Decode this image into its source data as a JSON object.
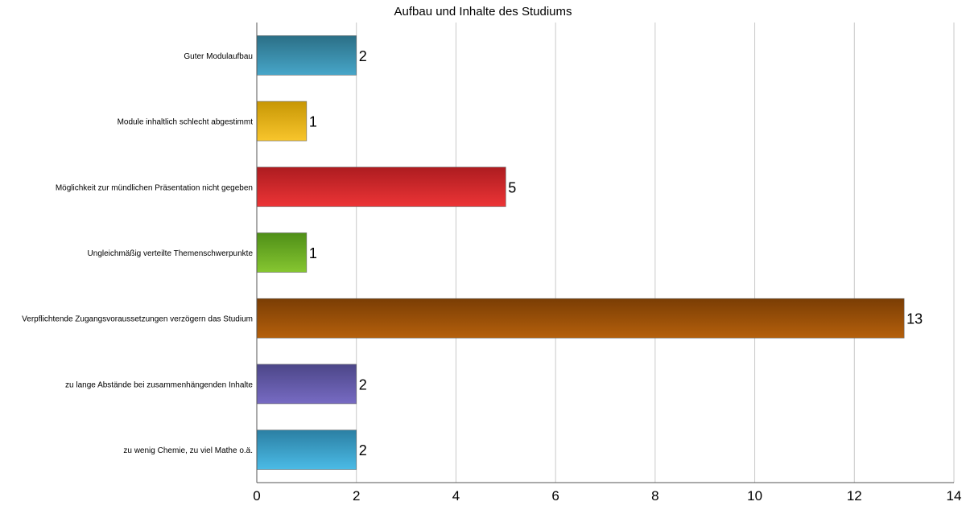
{
  "chart_data": {
    "type": "bar",
    "orientation": "horizontal",
    "title": "Aufbau und Inhalte des Studiums",
    "categories": [
      "Guter Modulaufbau",
      "Module inhaltlich schlecht abgestimmt",
      "Möglichkeit zur mündlichen Präsentation nicht gegeben",
      "Ungleichmäßig verteilte Themenschwerpunkte",
      "Verpflichtende Zugangsvoraussetzungen verzögern das Studium",
      "zu lange Abstände bei zusammenhängenden Inhalte",
      "zu wenig Chemie, zu viel Mathe o.ä."
    ],
    "values": [
      2,
      1,
      5,
      1,
      13,
      2,
      2
    ],
    "colors": [
      [
        "#2b6f86",
        "#47a6c9"
      ],
      [
        "#c79705",
        "#f8c52c"
      ],
      [
        "#ad1c20",
        "#ec3436"
      ],
      [
        "#4f8f17",
        "#86c631"
      ],
      [
        "#7a3d04",
        "#b5600c"
      ],
      [
        "#4c4688",
        "#776bc3"
      ],
      [
        "#2b7fa3",
        "#4bbbe6"
      ]
    ],
    "xlim": [
      0,
      14
    ],
    "xticks": [
      0,
      2,
      4,
      6,
      8,
      10,
      12,
      14
    ],
    "grid": true,
    "legend": "none"
  }
}
